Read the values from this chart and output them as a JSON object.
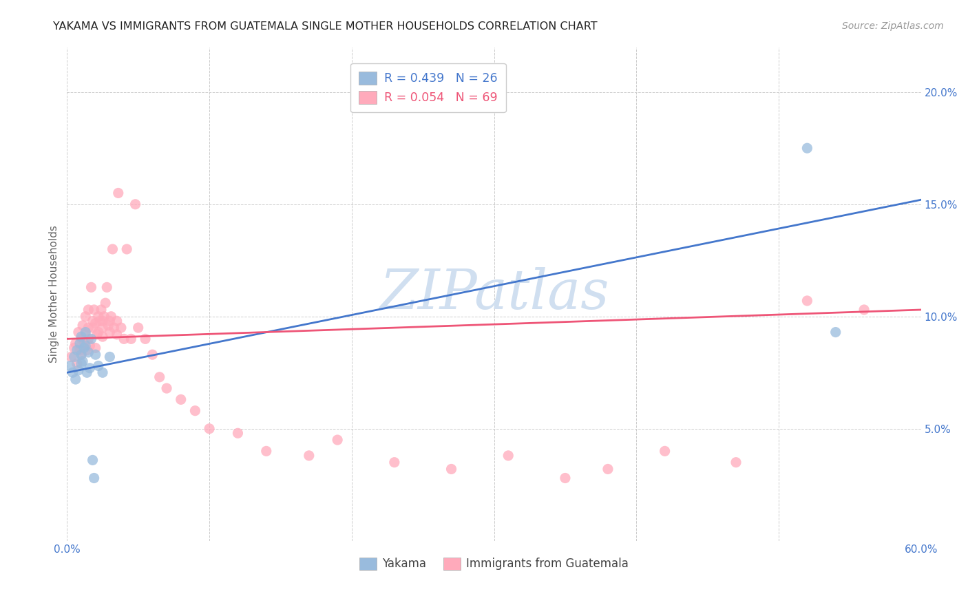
{
  "title": "YAKAMA VS IMMIGRANTS FROM GUATEMALA SINGLE MOTHER HOUSEHOLDS CORRELATION CHART",
  "source": "Source: ZipAtlas.com",
  "ylabel_text": "Single Mother Households",
  "x_min": 0.0,
  "x_max": 0.6,
  "y_min": 0.0,
  "y_max": 0.22,
  "x_ticks": [
    0.0,
    0.1,
    0.2,
    0.3,
    0.4,
    0.5,
    0.6
  ],
  "x_tick_labels": [
    "0.0%",
    "",
    "",
    "",
    "",
    "",
    "60.0%"
  ],
  "y_ticks": [
    0.0,
    0.05,
    0.1,
    0.15,
    0.2
  ],
  "y_tick_labels": [
    "",
    "5.0%",
    "10.0%",
    "15.0%",
    "20.0%"
  ],
  "legend_r1": "R = 0.439",
  "legend_n1": "N = 26",
  "legend_r2": "R = 0.054",
  "legend_n2": "N = 69",
  "color_blue": "#99BBDD",
  "color_pink": "#FFAABB",
  "color_line_blue": "#4477CC",
  "color_line_pink": "#EE5577",
  "watermark_color": "#D0DFF0",
  "yakama_x": [
    0.002,
    0.004,
    0.005,
    0.006,
    0.007,
    0.008,
    0.009,
    0.01,
    0.01,
    0.01,
    0.011,
    0.012,
    0.013,
    0.013,
    0.014,
    0.015,
    0.016,
    0.017,
    0.018,
    0.019,
    0.02,
    0.022,
    0.025,
    0.03,
    0.52,
    0.54
  ],
  "yakama_y": [
    0.078,
    0.075,
    0.082,
    0.072,
    0.085,
    0.076,
    0.088,
    0.079,
    0.083,
    0.091,
    0.08,
    0.086,
    0.093,
    0.087,
    0.075,
    0.084,
    0.077,
    0.09,
    0.036,
    0.028,
    0.083,
    0.078,
    0.075,
    0.082,
    0.175,
    0.093
  ],
  "guatemala_x": [
    0.003,
    0.005,
    0.006,
    0.007,
    0.008,
    0.009,
    0.01,
    0.01,
    0.011,
    0.012,
    0.013,
    0.013,
    0.014,
    0.015,
    0.015,
    0.015,
    0.016,
    0.017,
    0.018,
    0.018,
    0.019,
    0.02,
    0.02,
    0.021,
    0.022,
    0.022,
    0.023,
    0.024,
    0.025,
    0.025,
    0.025,
    0.026,
    0.027,
    0.028,
    0.029,
    0.03,
    0.03,
    0.031,
    0.032,
    0.033,
    0.035,
    0.035,
    0.036,
    0.038,
    0.04,
    0.042,
    0.045,
    0.048,
    0.05,
    0.055,
    0.06,
    0.065,
    0.07,
    0.08,
    0.09,
    0.1,
    0.12,
    0.14,
    0.17,
    0.19,
    0.23,
    0.27,
    0.31,
    0.35,
    0.38,
    0.42,
    0.47,
    0.52,
    0.56
  ],
  "guatemala_y": [
    0.082,
    0.086,
    0.088,
    0.079,
    0.093,
    0.085,
    0.09,
    0.083,
    0.096,
    0.088,
    0.092,
    0.1,
    0.085,
    0.09,
    0.095,
    0.103,
    0.087,
    0.113,
    0.095,
    0.098,
    0.103,
    0.097,
    0.086,
    0.092,
    0.1,
    0.093,
    0.098,
    0.103,
    0.095,
    0.091,
    0.098,
    0.1,
    0.106,
    0.113,
    0.096,
    0.093,
    0.098,
    0.1,
    0.13,
    0.095,
    0.092,
    0.098,
    0.155,
    0.095,
    0.09,
    0.13,
    0.09,
    0.15,
    0.095,
    0.09,
    0.083,
    0.073,
    0.068,
    0.063,
    0.058,
    0.05,
    0.048,
    0.04,
    0.038,
    0.045,
    0.035,
    0.032,
    0.038,
    0.028,
    0.032,
    0.04,
    0.035,
    0.107,
    0.103
  ],
  "yakama_line_x0": 0.0,
  "yakama_line_y0": 0.075,
  "yakama_line_x1": 0.6,
  "yakama_line_y1": 0.152,
  "guatemala_line_x0": 0.0,
  "guatemala_line_y0": 0.09,
  "guatemala_line_x1": 0.6,
  "guatemala_line_y1": 0.103
}
